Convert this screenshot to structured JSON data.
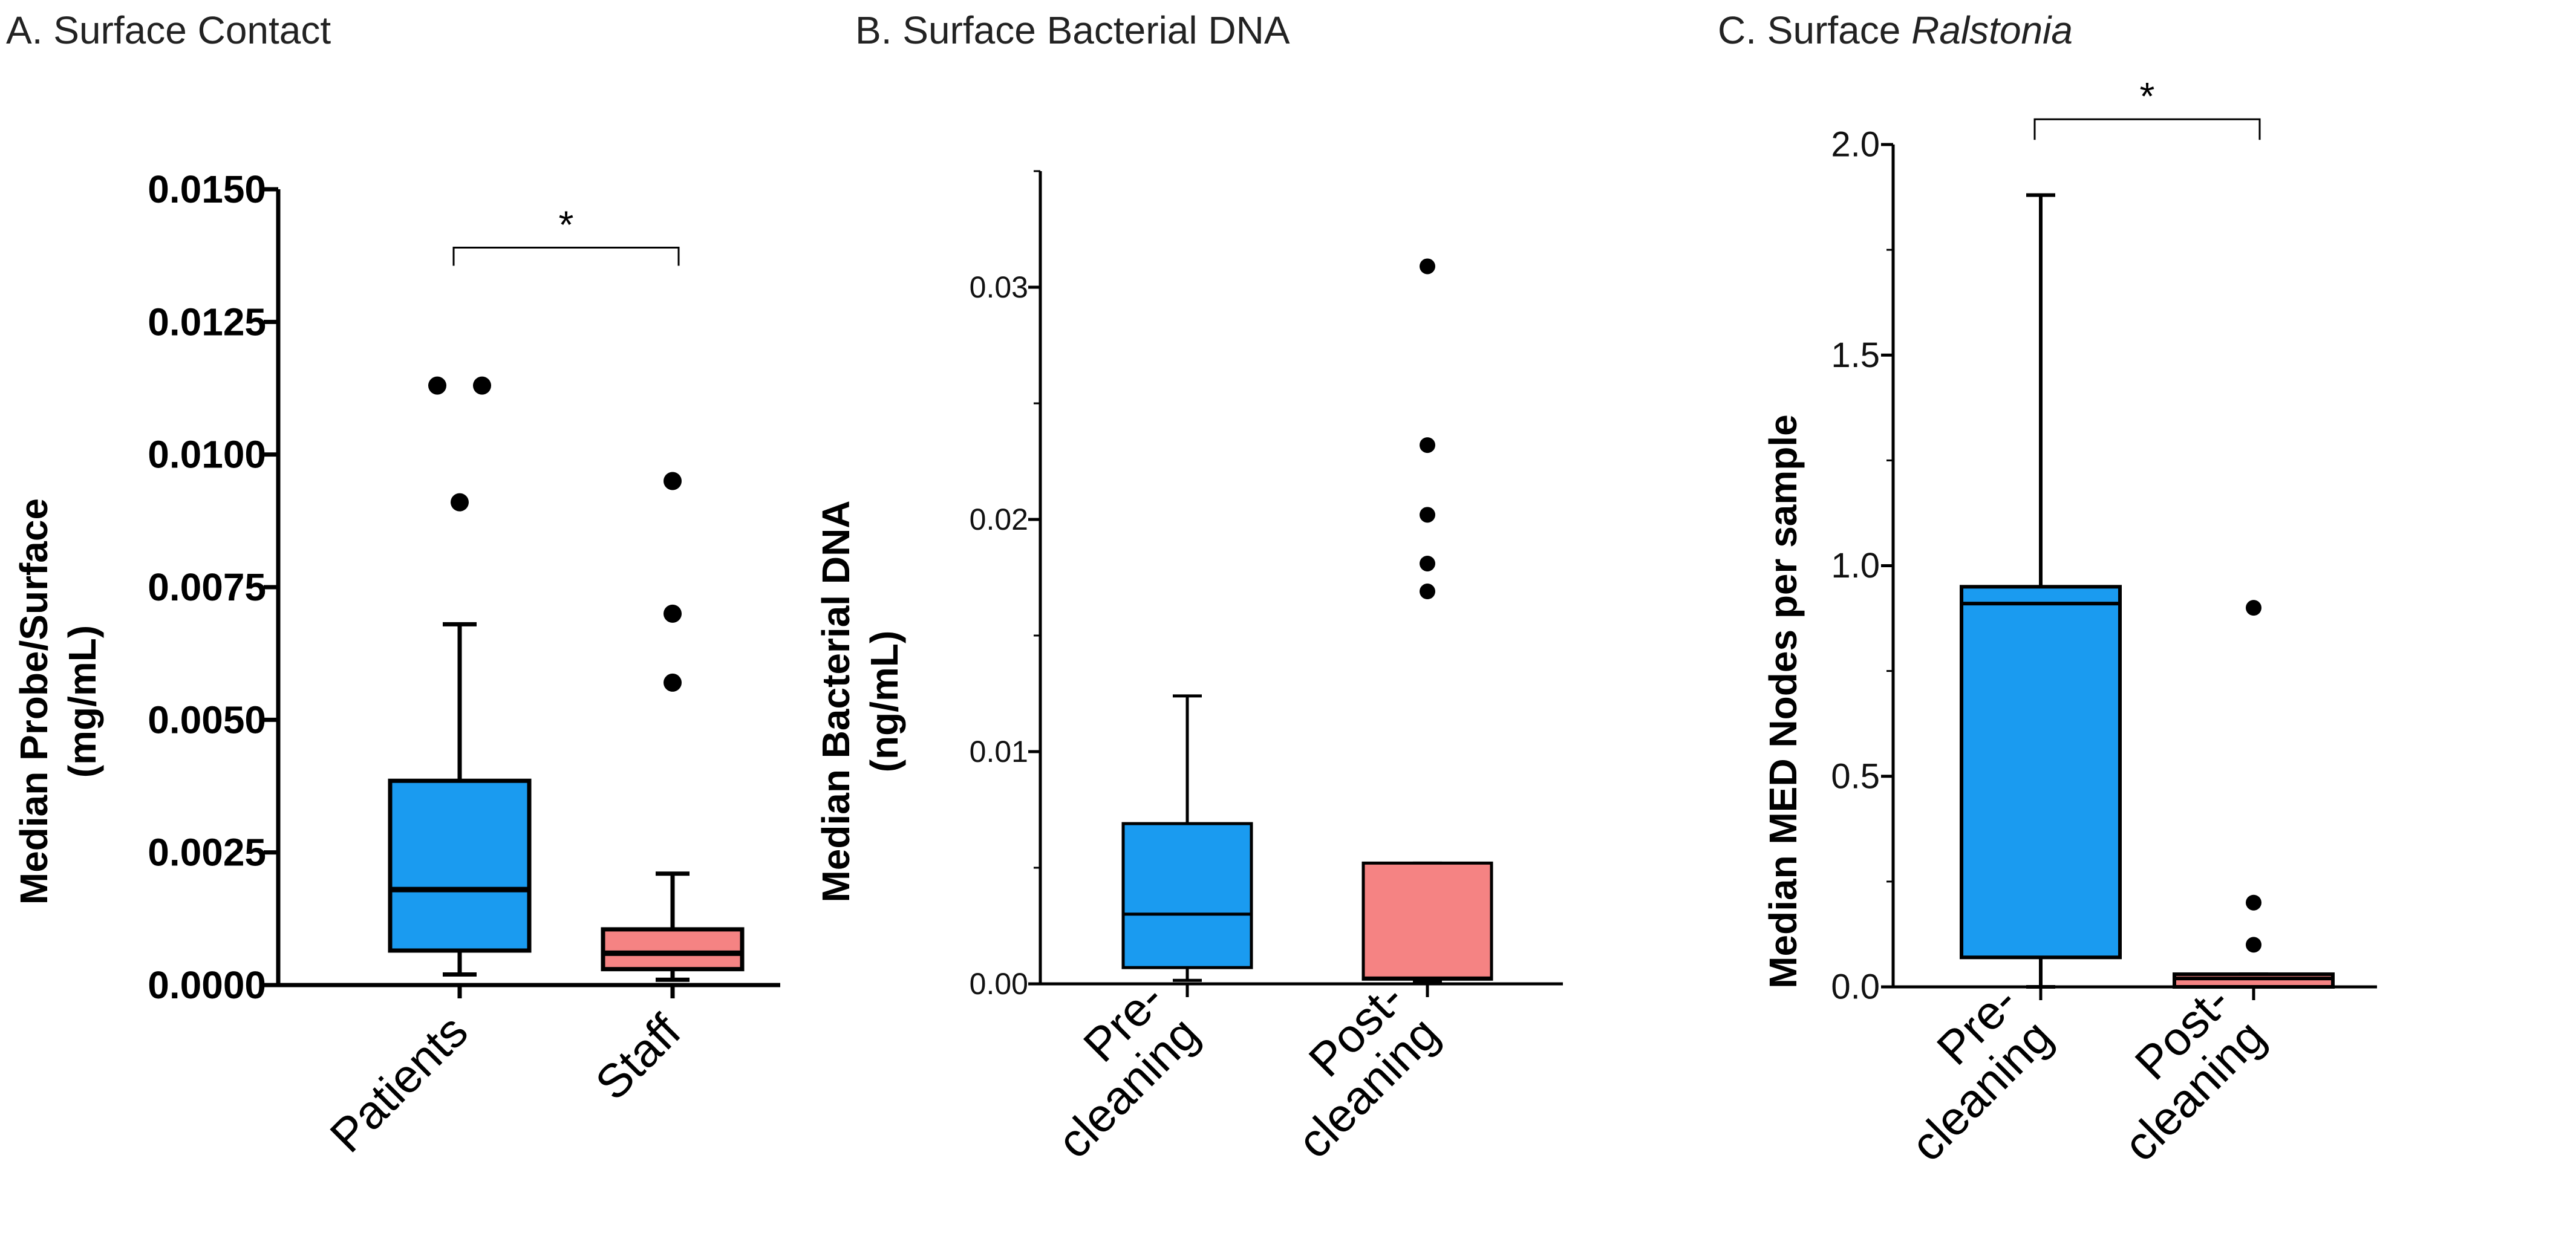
{
  "colors": {
    "group1": "#1a9bf0",
    "group2": "#f58383",
    "axis": "#000000",
    "point": "#000000"
  },
  "chart_data": [
    {
      "type": "box",
      "title": "A. Surface Contact",
      "ylabel": [
        "Median Probe/Surface",
        "(mg/mL)"
      ],
      "ylim": [
        0,
        0.015
      ],
      "yticks": [
        "0.0000",
        "0.0025",
        "0.0050",
        "0.0075",
        "0.0100",
        "0.0125",
        "0.0150"
      ],
      "categories": [
        "Patients",
        "Staff"
      ],
      "boxes": [
        {
          "name": "Patients",
          "whisker_low": 0.0002,
          "q1": 0.00065,
          "median": 0.0018,
          "q3": 0.00385,
          "whisker_high": 0.0068,
          "outliers": [
            0.0113,
            0.0113,
            0.0091
          ]
        },
        {
          "name": "Staff",
          "whisker_low": 0.0001,
          "q1": 0.0003,
          "median": 0.0006,
          "q3": 0.00105,
          "whisker_high": 0.0021,
          "outliers": [
            0.0095,
            0.007,
            0.0057
          ]
        }
      ],
      "significance": {
        "label": "*",
        "level": 0.0139
      }
    },
    {
      "type": "box",
      "title": "B. Surface Bacterial DNA",
      "ylabel": [
        "Median Bacterial DNA",
        "(ng/mL)"
      ],
      "ylim": [
        0,
        0.035
      ],
      "yticks": [
        "0.00",
        "0.01",
        "0.02",
        "0.03"
      ],
      "categories": [
        "Pre-\ncleaning",
        "Post-\ncleaning"
      ],
      "boxes": [
        {
          "name": "Pre-cleaning",
          "whisker_low": 0.00015,
          "q1": 0.0007,
          "median": 0.003,
          "q3": 0.0069,
          "whisker_high": 0.0124,
          "outliers": []
        },
        {
          "name": "Post-cleaning",
          "whisker_low": 0.0001,
          "q1": 0.0002,
          "median": 0.00025,
          "q3": 0.0052,
          "whisker_high": 0.0052,
          "outliers": [
            0.0309,
            0.0232,
            0.0202,
            0.0181,
            0.0169
          ]
        }
      ]
    },
    {
      "type": "box",
      "title_prefix": "C. Surface ",
      "title_italic": "Ralstonia",
      "ylabel": [
        "Median MED Nodes per sample"
      ],
      "ylim": [
        0,
        2.0
      ],
      "yticks": [
        "0.0",
        "0.5",
        "1.0",
        "1.5",
        "2.0"
      ],
      "categories": [
        "Pre-\ncleaning",
        "Post-\ncleaning"
      ],
      "boxes": [
        {
          "name": "Pre-cleaning",
          "whisker_low": 0.0,
          "q1": 0.07,
          "median": 0.91,
          "q3": 0.95,
          "whisker_high": 1.88,
          "outliers": []
        },
        {
          "name": "Post-cleaning",
          "whisker_low": 0.0,
          "q1": 0.0,
          "median": 0.02,
          "q3": 0.03,
          "whisker_high": 0.03,
          "outliers": [
            0.9,
            0.2,
            0.1
          ]
        }
      ],
      "significance": {
        "label": "*",
        "level": 2.06
      }
    }
  ]
}
